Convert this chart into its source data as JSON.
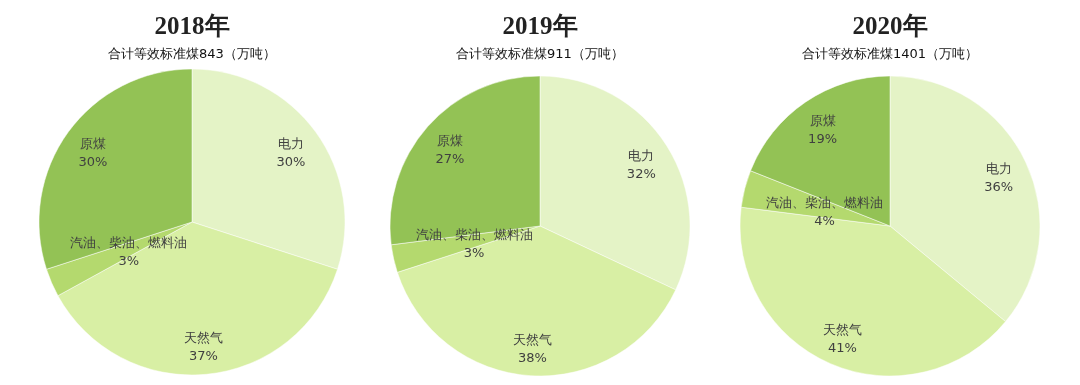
{
  "chart_data": [
    {
      "type": "pie",
      "title": "2018年",
      "subtitle": "合计等效标准煤843（万吨）",
      "categories": [
        "电力",
        "天然气",
        "汽油、柴油、燃料油",
        "原煤"
      ],
      "values": [
        30,
        37,
        3,
        30
      ],
      "value_labels": [
        "30%",
        "37%",
        "3%",
        "30%"
      ],
      "colors": [
        "#e4f3c6",
        "#d8efa4",
        "#b4d96e",
        "#93c255"
      ]
    },
    {
      "type": "pie",
      "title": "2019年",
      "subtitle": "合计等效标准煤911（万吨）",
      "categories": [
        "电力",
        "天然气",
        "汽油、柴油、燃料油",
        "原煤"
      ],
      "values": [
        32,
        38,
        3,
        27
      ],
      "value_labels": [
        "32%",
        "38%",
        "3%",
        "27%"
      ],
      "colors": [
        "#e4f3c6",
        "#d8efa4",
        "#b4d96e",
        "#93c255"
      ]
    },
    {
      "type": "pie",
      "title": "2020年",
      "subtitle": "合计等效标准煤1401（万吨）",
      "categories": [
        "电力",
        "天然气",
        "汽油、柴油、燃料油",
        "原煤"
      ],
      "values": [
        36,
        41,
        4,
        19
      ],
      "value_labels": [
        "36%",
        "41%",
        "4%",
        "19%"
      ],
      "colors": [
        "#e4f3c6",
        "#d8efa4",
        "#b4d96e",
        "#93c255"
      ]
    }
  ]
}
